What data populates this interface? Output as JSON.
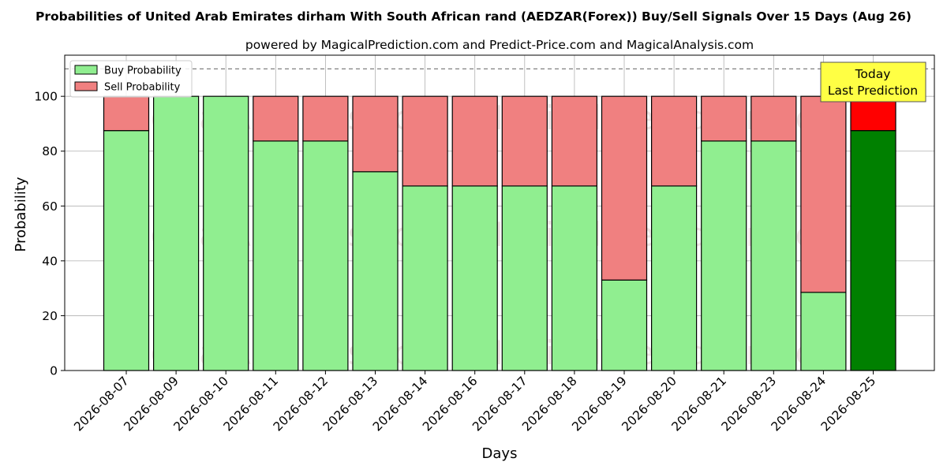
{
  "chart_data": {
    "type": "bar",
    "stacked": true,
    "title": "Probabilities of United Arab Emirates dirham With South African rand (AEDZAR(Forex)) Buy/Sell Signals Over 15 Days (Aug 26)",
    "subtitle": "powered by MagicalPrediction.com and Predict-Price.com and MagicalAnalysis.com",
    "xlabel": "Days",
    "ylabel": "Probability",
    "ylim": [
      0,
      115
    ],
    "yticks": [
      0,
      20,
      40,
      60,
      80,
      100
    ],
    "grid": true,
    "legend_position": "top-left",
    "reference_line": 110,
    "categories": [
      "2026-08-07",
      "2026-08-09",
      "2026-08-10",
      "2026-08-11",
      "2026-08-12",
      "2026-08-13",
      "2026-08-14",
      "2026-08-16",
      "2026-08-17",
      "2026-08-18",
      "2026-08-19",
      "2026-08-20",
      "2026-08-21",
      "2026-08-23",
      "2026-08-24",
      "2026-08-25"
    ],
    "series": [
      {
        "name": "Buy Probability",
        "color": "#90ee90",
        "highlight_color": "#008000",
        "values": [
          87.5,
          100,
          100,
          83.7,
          83.7,
          72.5,
          67.3,
          67.3,
          67.3,
          67.3,
          33,
          67.3,
          83.7,
          83.7,
          28.5,
          87.5
        ]
      },
      {
        "name": "Sell Probability",
        "color": "#f08080",
        "highlight_color": "#ff0000",
        "values": [
          12.5,
          0,
          0,
          16.3,
          16.3,
          27.5,
          32.7,
          32.7,
          32.7,
          32.7,
          67,
          32.7,
          16.3,
          16.3,
          71.5,
          12.5
        ]
      }
    ],
    "annotation": {
      "lines": [
        "Today",
        "Last Prediction"
      ],
      "color": "#ffff44"
    },
    "watermarks": [
      "MagicalAnalysis.com",
      "MagicalPrediction.com"
    ]
  }
}
